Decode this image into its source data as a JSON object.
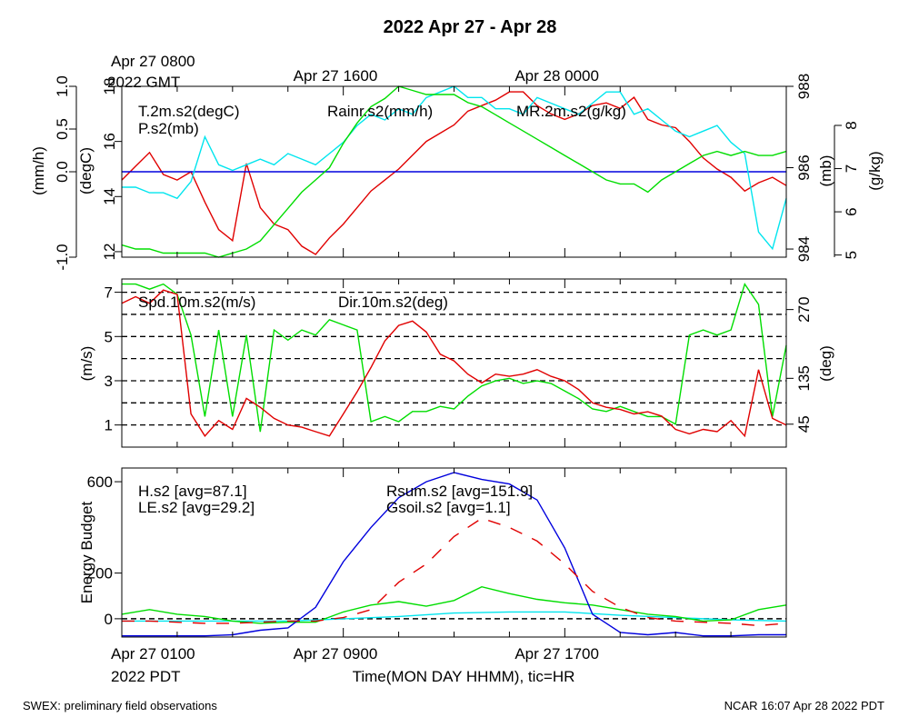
{
  "title": "2022 Apr 27 - Apr 28",
  "top_time_labels": [
    {
      "hour": 0,
      "line1": "Apr 27 0800",
      "line2": "2022 GMT"
    },
    {
      "hour": 8,
      "line1": "Apr 27 1600",
      "line2": ""
    },
    {
      "hour": 16,
      "line1": "Apr 28 0000",
      "line2": ""
    }
  ],
  "bottom_time_labels": [
    {
      "hour": 0,
      "line1": "Apr 27 0100",
      "line2": "2022 PDT"
    },
    {
      "hour": 8,
      "line1": "Apr 27 0900",
      "line2": ""
    },
    {
      "hour": 16,
      "line1": "Apr 27 1700",
      "line2": ""
    }
  ],
  "xlabel": "Time(MON DAY HHMM), tic=HR",
  "footer_left": "SWEX: preliminary field observations",
  "footer_right": "NCAR 16:07 Apr 28 2022 PDT",
  "colors": {
    "red": "#e00000",
    "green": "#00dd00",
    "blue": "#0000dd",
    "cyan": "#00e5ee",
    "black": "#000000"
  },
  "chart_data": [
    {
      "type": "line",
      "x_range_hours": [
        0,
        24
      ],
      "axes": {
        "rain": {
          "label": "(mm/h)",
          "range": [
            -1.0,
            1.0
          ],
          "ticks": [
            -1.0,
            0.0,
            0.5,
            1.0
          ],
          "tick_labels": [
            "-1.0",
            "0.0",
            "0.5",
            "1.0"
          ]
        },
        "temp": {
          "label": "(degC)",
          "range": [
            11.8,
            18.0
          ],
          "ticks": [
            12,
            14,
            16,
            18
          ],
          "tick_labels": [
            "12",
            "14",
            "16",
            "18"
          ]
        },
        "pres": {
          "label": "(mb)",
          "range": [
            983.8,
            988.0
          ],
          "ticks": [
            984,
            986,
            988
          ],
          "tick_labels": [
            "984",
            "986",
            "988"
          ]
        },
        "mr": {
          "label": "(g/kg)",
          "range": [
            4.95,
            8.0
          ],
          "ticks": [
            5,
            6,
            7,
            8
          ],
          "tick_labels": [
            "5",
            "6",
            "7",
            "8"
          ]
        }
      },
      "series": [
        {
          "name": "T.2m.s2(degC)",
          "axis": "temp",
          "color": "red",
          "x": [
            0,
            0.5,
            1,
            1.5,
            2,
            2.5,
            3,
            3.5,
            4,
            4.5,
            5,
            5.5,
            6,
            6.5,
            7,
            7.5,
            8,
            8.5,
            9,
            9.5,
            10,
            10.5,
            11,
            11.5,
            12,
            12.5,
            13,
            13.5,
            14,
            14.5,
            15,
            15.5,
            16,
            16.5,
            17,
            17.5,
            18,
            18.5,
            19,
            19.5,
            20,
            20.5,
            21,
            21.5,
            22,
            22.5,
            23,
            23.5,
            24
          ],
          "y": [
            14.6,
            15.1,
            15.6,
            14.8,
            14.6,
            14.9,
            13.8,
            12.8,
            12.4,
            15.2,
            13.6,
            13.0,
            12.8,
            12.2,
            11.9,
            12.5,
            13.0,
            13.6,
            14.2,
            14.6,
            15.0,
            15.5,
            16.0,
            16.3,
            16.6,
            17.1,
            17.3,
            17.5,
            17.8,
            17.8,
            17.3,
            17.0,
            16.8,
            17.0,
            17.3,
            17.4,
            17.2,
            17.6,
            16.8,
            16.6,
            16.5,
            16.0,
            15.4,
            15.0,
            14.7,
            14.2,
            14.5,
            14.7,
            14.4
          ]
        },
        {
          "name": "Rainr.s2(mm/h)",
          "axis": "rain",
          "color": "blue",
          "x": [
            0,
            24
          ],
          "y": [
            0,
            0
          ]
        },
        {
          "name": "MR.2m.s2(g/kg)",
          "axis": "mr",
          "color": "cyan",
          "x": [
            0,
            0.5,
            1,
            1.5,
            2,
            2.5,
            3,
            3.5,
            4,
            4.5,
            5,
            5.5,
            6,
            6.5,
            7,
            7.5,
            8,
            8.5,
            9,
            9.5,
            10,
            10.5,
            11,
            11.5,
            12,
            12.5,
            13,
            13.5,
            14,
            14.5,
            15,
            15.5,
            16,
            16.5,
            17,
            17.5,
            18,
            18.5,
            19,
            19.5,
            20,
            20.5,
            21,
            21.5,
            22,
            22.5,
            23,
            23.5,
            24
          ],
          "y": [
            6.2,
            6.2,
            6.1,
            6.1,
            6.0,
            6.3,
            7.1,
            6.6,
            6.5,
            6.6,
            6.7,
            6.6,
            6.8,
            6.7,
            6.6,
            6.8,
            7.0,
            7.3,
            7.5,
            7.4,
            7.6,
            7.5,
            7.8,
            7.9,
            8.0,
            7.8,
            7.8,
            7.6,
            7.6,
            7.5,
            7.8,
            7.7,
            7.6,
            7.5,
            7.7,
            7.9,
            7.9,
            7.5,
            7.6,
            7.4,
            7.2,
            7.1,
            7.2,
            7.3,
            7.0,
            6.8,
            5.4,
            5.1,
            6.0
          ]
        },
        {
          "name": "P.s2(mb)",
          "axis": "pres",
          "color": "green",
          "x": [
            0,
            0.5,
            1,
            1.5,
            2,
            2.5,
            3,
            3.5,
            4,
            4.5,
            5,
            5.5,
            6,
            6.5,
            7,
            7.5,
            8,
            8.5,
            9,
            9.5,
            10,
            10.5,
            11,
            11.5,
            12,
            12.5,
            13,
            13.5,
            14,
            14.5,
            15,
            15.5,
            16,
            16.5,
            17,
            17.5,
            18,
            18.5,
            19,
            19.5,
            20,
            20.5,
            21,
            21.5,
            22,
            22.5,
            23,
            23.5,
            24
          ],
          "y": [
            984.1,
            984.0,
            984.0,
            983.9,
            983.9,
            983.9,
            983.9,
            983.8,
            983.9,
            984.0,
            984.2,
            984.6,
            985.0,
            985.4,
            985.7,
            986.0,
            986.6,
            987.1,
            987.5,
            987.7,
            988.0,
            987.9,
            987.8,
            987.8,
            987.8,
            987.6,
            987.5,
            987.3,
            987.1,
            986.9,
            986.7,
            986.5,
            986.3,
            986.1,
            985.9,
            985.7,
            985.6,
            985.6,
            985.4,
            985.7,
            985.9,
            986.1,
            986.3,
            986.4,
            986.3,
            986.4,
            986.3,
            986.3,
            986.4
          ]
        }
      ]
    },
    {
      "type": "line",
      "x_range_hours": [
        0,
        24
      ],
      "axes": {
        "spd": {
          "label": "(m/s)",
          "range": [
            0,
            7.6
          ],
          "ticks": [
            1,
            3,
            5,
            7
          ],
          "tick_labels": [
            "1",
            "3",
            "5",
            "7"
          ]
        },
        "dir": {
          "label": "(deg)",
          "range": [
            0,
            330
          ],
          "ticks": [
            45,
            135,
            270
          ],
          "tick_labels": [
            "45",
            "135",
            "270"
          ]
        }
      },
      "grid_lines_mps": [
        1,
        2,
        3,
        4,
        5,
        6,
        7
      ],
      "series": [
        {
          "name": "Spd.10m.s2(m/s)",
          "axis": "spd",
          "color": "red",
          "x": [
            0,
            0.5,
            1,
            1.5,
            2,
            2.5,
            3,
            3.5,
            4,
            4.5,
            5,
            5.5,
            6,
            6.5,
            7,
            7.5,
            8,
            8.5,
            9,
            9.5,
            10,
            10.5,
            11,
            11.5,
            12,
            12.5,
            13,
            13.5,
            14,
            14.5,
            15,
            15.5,
            16,
            16.5,
            17,
            17.5,
            18,
            18.5,
            19,
            19.5,
            20,
            20.5,
            21,
            21.5,
            22,
            22.5,
            23,
            23.5,
            24
          ],
          "y": [
            6.5,
            6.8,
            6.5,
            7.1,
            6.9,
            1.5,
            0.5,
            1.2,
            0.8,
            2.2,
            1.8,
            1.3,
            1.0,
            0.9,
            0.7,
            0.5,
            1.5,
            2.5,
            3.6,
            4.8,
            5.5,
            5.7,
            5.2,
            4.2,
            3.9,
            3.3,
            2.9,
            3.3,
            3.2,
            3.3,
            3.5,
            3.2,
            3.0,
            2.6,
            2.0,
            1.8,
            1.7,
            1.5,
            1.6,
            1.4,
            0.8,
            0.6,
            0.8,
            0.7,
            1.2,
            0.5,
            3.5,
            1.3,
            1.0
          ]
        },
        {
          "name": "Dir.10m.s2(deg)",
          "axis": "dir",
          "color": "green",
          "x": [
            0,
            0.5,
            1,
            1.5,
            2,
            2.5,
            3,
            3.5,
            4,
            4.5,
            5,
            5.5,
            6,
            6.5,
            7,
            7.5,
            8,
            8.5,
            9,
            9.5,
            10,
            10.5,
            11,
            11.5,
            12,
            12.5,
            13,
            13.5,
            14,
            14.5,
            15,
            15.5,
            16,
            16.5,
            17,
            17.5,
            18,
            18.5,
            19,
            19.5,
            20,
            20.5,
            21,
            21.5,
            22,
            22.5,
            23,
            23.5,
            24
          ],
          "y": [
            320,
            320,
            310,
            320,
            300,
            220,
            60,
            230,
            60,
            220,
            30,
            230,
            210,
            230,
            220,
            250,
            240,
            230,
            50,
            60,
            50,
            70,
            70,
            80,
            75,
            100,
            120,
            130,
            135,
            125,
            130,
            125,
            110,
            95,
            75,
            70,
            80,
            70,
            60,
            60,
            45,
            220,
            230,
            220,
            230,
            320,
            280,
            60,
            200
          ]
        }
      ]
    },
    {
      "type": "line",
      "x_range_hours": [
        0,
        24
      ],
      "ylabel": "Energy Budget",
      "yaxis": {
        "range": [
          -80,
          660
        ],
        "ticks": [
          0,
          200,
          600
        ],
        "tick_labels": [
          "0",
          "200",
          "600"
        ]
      },
      "series": [
        {
          "name": "H.s2 [avg=87.1]",
          "color": "red",
          "dashed": true,
          "x": [
            0,
            1,
            2,
            3,
            4,
            5,
            6,
            7,
            8,
            9,
            10,
            11,
            12,
            13,
            14,
            15,
            16,
            17,
            18,
            19,
            20,
            21,
            22,
            23,
            24
          ],
          "y": [
            -10,
            -10,
            -15,
            -20,
            -20,
            -15,
            -10,
            -10,
            5,
            40,
            160,
            240,
            360,
            440,
            400,
            340,
            240,
            120,
            50,
            5,
            -10,
            -15,
            -20,
            -30,
            -20
          ]
        },
        {
          "name": "LE.s2 [avg=29.2]",
          "color": "green",
          "x": [
            0,
            1,
            2,
            3,
            4,
            5,
            6,
            7,
            8,
            9,
            10,
            11,
            12,
            13,
            14,
            15,
            16,
            17,
            18,
            19,
            20,
            21,
            22,
            23,
            24
          ],
          "y": [
            20,
            40,
            20,
            10,
            -10,
            -20,
            -15,
            -15,
            30,
            60,
            75,
            55,
            80,
            140,
            110,
            85,
            70,
            60,
            40,
            20,
            10,
            -10,
            -5,
            40,
            60
          ]
        },
        {
          "name": "Rsum.s2 [avg=151.9]",
          "color": "blue",
          "x": [
            0,
            1,
            2,
            3,
            4,
            5,
            6,
            7,
            8,
            9,
            10,
            11,
            12,
            13,
            14,
            15,
            16,
            17,
            18,
            19,
            20,
            21,
            22,
            23,
            24
          ],
          "y": [
            -75,
            -75,
            -75,
            -75,
            -70,
            -50,
            -40,
            50,
            250,
            400,
            530,
            600,
            640,
            610,
            590,
            520,
            310,
            20,
            -60,
            -70,
            -60,
            -75,
            -75,
            -70,
            -70
          ]
        },
        {
          "name": "Gsoil.s2 [avg=1.1]",
          "color": "cyan",
          "x": [
            0,
            2,
            4,
            6,
            8,
            10,
            12,
            14,
            16,
            18,
            20,
            22,
            24
          ],
          "y": [
            -10,
            -10,
            -10,
            -10,
            0,
            10,
            25,
            30,
            30,
            15,
            5,
            -5,
            -10
          ]
        }
      ]
    }
  ]
}
